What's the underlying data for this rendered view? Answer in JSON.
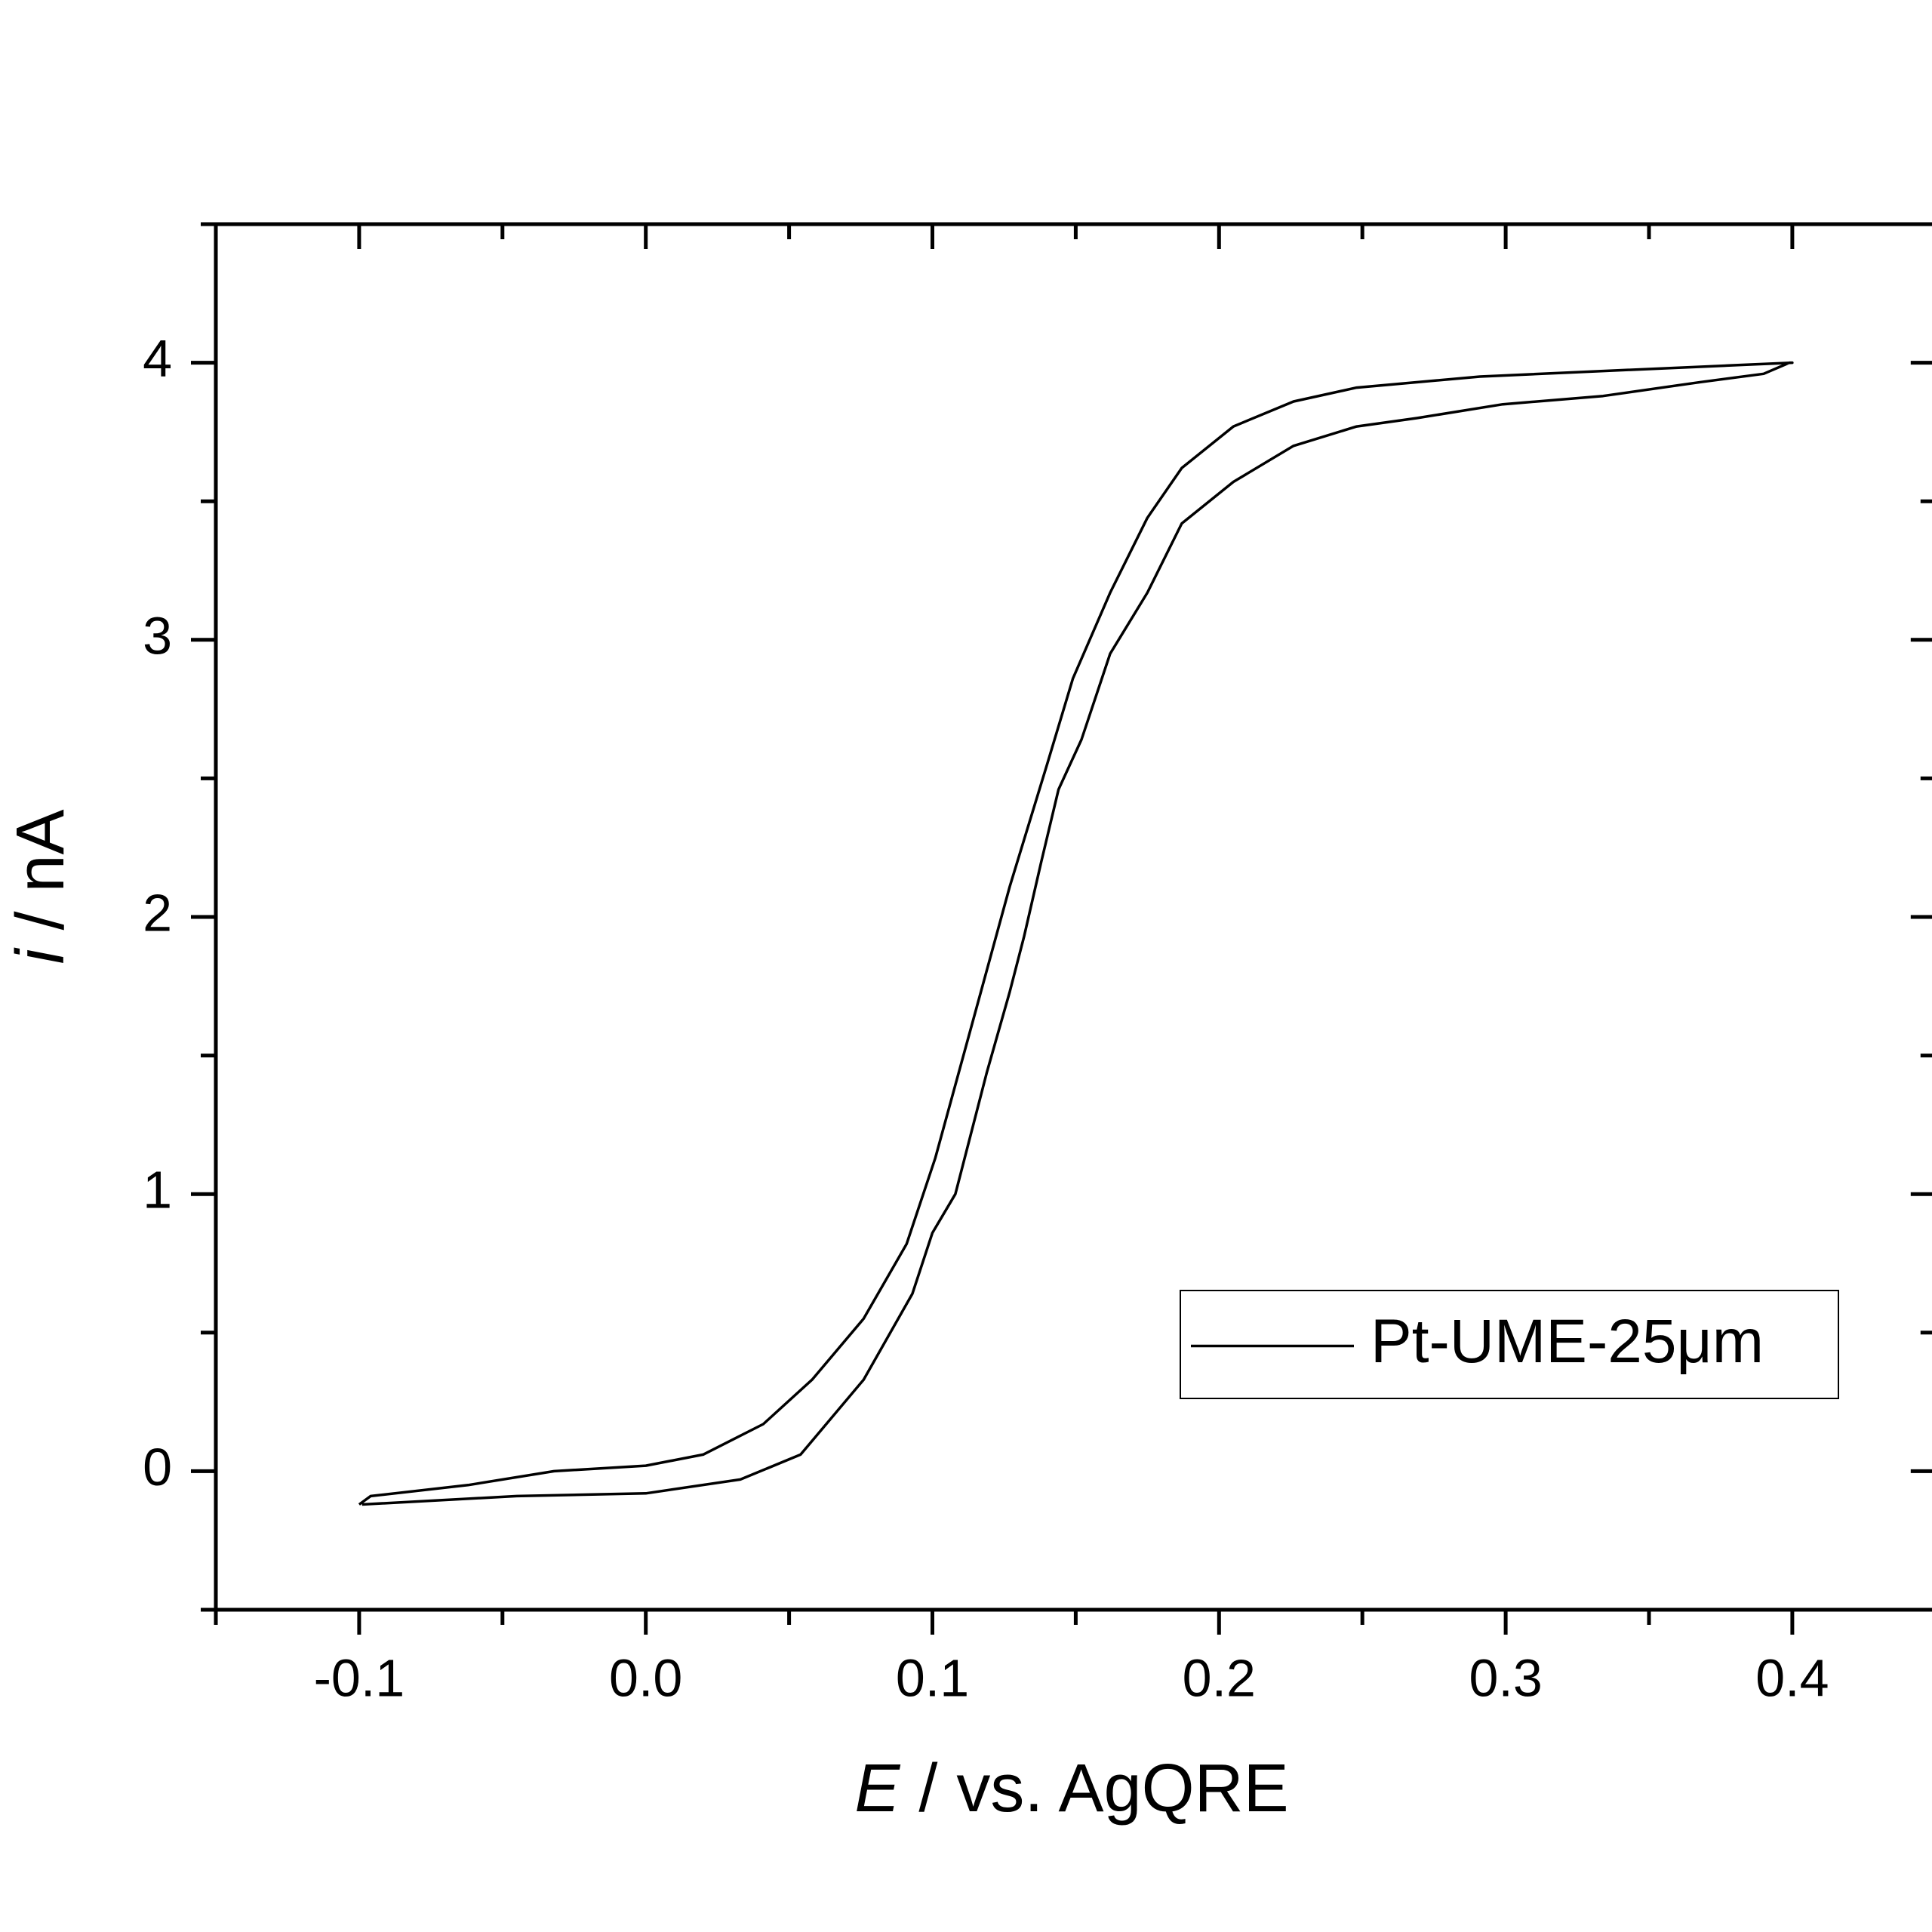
{
  "chart_data": {
    "type": "line",
    "xlabel": [
      "E",
      " / vs. AgQRE"
    ],
    "ylabel": [
      "i",
      " / nA"
    ],
    "xlim": [
      -0.15,
      0.45
    ],
    "ylim": [
      -0.5,
      4.5
    ],
    "xticks": [
      -0.1,
      {
        "value": 0,
        "label": "0.0"
      },
      0.1,
      0.2,
      0.3,
      0.4
    ],
    "yticks": [
      0,
      1,
      2,
      3,
      4
    ],
    "xminorticks": [
      -0.15,
      -0.05,
      0.05,
      0.15,
      0.25,
      0.35,
      0.45
    ],
    "yminorticks": [
      -0.5,
      0.5,
      1.5,
      2.5,
      3.5,
      4.5
    ],
    "legend": "lower right",
    "series": [
      {
        "name": "Pt-UME-25μm",
        "color": "#000000",
        "x": [
          -0.099,
          -0.045,
          0,
          0.033,
          0.054,
          0.076,
          0.093,
          0.1,
          0.108,
          0.119,
          0.127,
          0.132,
          0.138,
          0.144,
          0.152,
          0.162,
          0.175,
          0.187,
          0.205,
          0.226,
          0.248,
          0.269,
          0.299,
          0.334,
          0.368,
          0.39,
          0.399,
          0.4,
          0.378,
          0.334,
          0.291,
          0.248,
          0.226,
          0.205,
          0.187,
          0.175,
          0.162,
          0.149,
          0.14,
          0.127,
          0.114,
          0.101,
          0.091,
          0.076,
          0.058,
          0.041,
          0.02,
          0,
          -0.032,
          -0.062,
          -0.096,
          -0.1
        ],
        "values": [
          -0.12,
          -0.09,
          -0.08,
          -0.03,
          0.06,
          0.33,
          0.64,
          0.86,
          1.0,
          1.44,
          1.73,
          1.93,
          2.2,
          2.46,
          2.64,
          2.95,
          3.17,
          3.42,
          3.57,
          3.7,
          3.77,
          3.8,
          3.85,
          3.88,
          3.93,
          3.96,
          4.0,
          4.0,
          3.99,
          3.97,
          3.95,
          3.91,
          3.86,
          3.77,
          3.62,
          3.44,
          3.17,
          2.86,
          2.55,
          2.11,
          1.62,
          1.13,
          0.82,
          0.55,
          0.33,
          0.17,
          0.06,
          0.02,
          0,
          -0.05,
          -0.09,
          -0.12
        ]
      }
    ]
  }
}
